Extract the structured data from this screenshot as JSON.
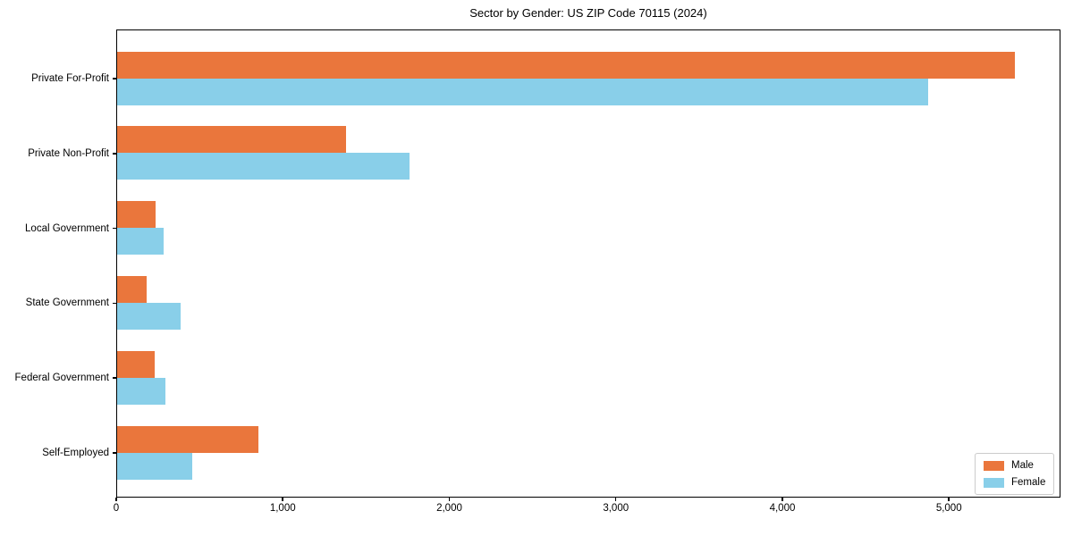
{
  "chart_data": {
    "type": "bar",
    "orientation": "horizontal",
    "title": "Sector by Gender: US ZIP Code 70115 (2024)",
    "categories": [
      "Private For-Profit",
      "Private Non-Profit",
      "Local Government",
      "State Government",
      "Federal Government",
      "Self-Employed"
    ],
    "series": [
      {
        "name": "Male",
        "color": "#EA763C",
        "values": [
          5400,
          1375,
          230,
          180,
          225,
          850
        ]
      },
      {
        "name": "Female",
        "color": "#89CFE9",
        "values": [
          4880,
          1760,
          280,
          380,
          290,
          450
        ]
      }
    ],
    "xlabel": "",
    "ylabel": "",
    "xlim": [
      0,
      5670
    ],
    "xticks": [
      0,
      1000,
      2000,
      3000,
      4000,
      5000
    ],
    "xtick_labels": [
      "0",
      "1,000",
      "2,000",
      "3,000",
      "4,000",
      "5,000"
    ],
    "grid": false,
    "legend": {
      "position": "lower right",
      "entries": [
        "Male",
        "Female"
      ]
    }
  }
}
